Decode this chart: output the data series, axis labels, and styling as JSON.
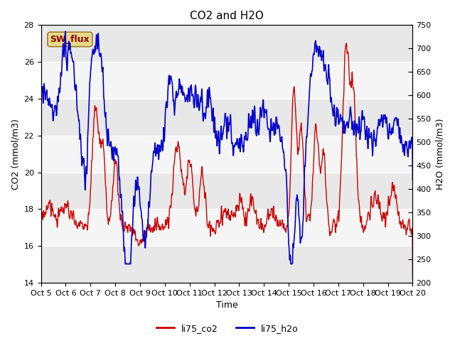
{
  "title": "CO2 and H2O",
  "xlabel": "Time",
  "ylabel_left": "CO2 (mmol/m3)",
  "ylabel_right": "H2O (mmol/m3)",
  "co2_color": "#CC0000",
  "h2o_color": "#0000CC",
  "co2_lw": 1.0,
  "h2o_lw": 1.2,
  "ylim_left": [
    14,
    28
  ],
  "ylim_right": [
    200,
    750
  ],
  "yticks_left": [
    14,
    16,
    18,
    20,
    22,
    24,
    26,
    28
  ],
  "yticks_right": [
    200,
    250,
    300,
    350,
    400,
    450,
    500,
    550,
    600,
    650,
    700,
    750
  ],
  "xtick_labels": [
    "Oct 5",
    "Oct 6",
    "Oct 7",
    "Oct 8",
    "Oct 9",
    "Oct 10",
    "Oct 11",
    "Oct 12",
    "Oct 13",
    "Oct 14",
    "Oct 15",
    "Oct 16",
    "Oct 17",
    "Oct 18",
    "Oct 19",
    "Oct 20"
  ],
  "n_days": 15,
  "band_colors": [
    "#e8e8e8",
    "#f5f5f5"
  ],
  "annotation_text": "SW_flux",
  "annotation_fg": "#8B0000",
  "annotation_bg": "#e8d88a",
  "annotation_border": "#a08030",
  "legend_entries": [
    "li75_co2",
    "li75_h2o"
  ],
  "title_fontsize": 11,
  "axis_fontsize": 9,
  "tick_fontsize": 8,
  "figsize": [
    6.4,
    4.8
  ],
  "dpi": 100
}
